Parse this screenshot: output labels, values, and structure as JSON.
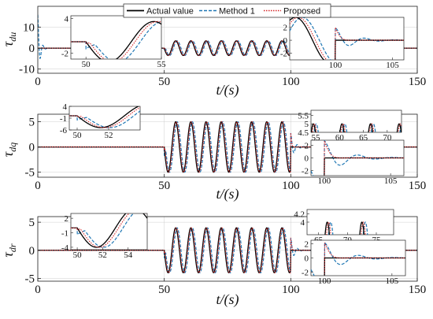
{
  "legend": {
    "entries": [
      {
        "label": "Actual value",
        "color": "#000000",
        "style": "solid"
      },
      {
        "label": "Method 1",
        "color": "#1f77b4",
        "style": "dashed"
      },
      {
        "label": "Proposed",
        "color": "#d62728",
        "style": "dotted"
      }
    ]
  },
  "chart_data": [
    {
      "type": "line",
      "ylabel_main": "τ",
      "ylabel_sub": "du",
      "xlabel": "t/(s)",
      "xlim": [
        0,
        150
      ],
      "ylim": [
        -12,
        20
      ],
      "xticks": [
        0,
        50,
        100,
        150
      ],
      "yticks": [
        -10,
        0,
        10
      ],
      "signal": {
        "segments": [
          {
            "t0": 0,
            "t1": 50,
            "kind": "flat",
            "level": 0
          },
          {
            "t0": 50,
            "t1": 100,
            "kind": "sine",
            "amplitude": 3.5,
            "period": 6
          },
          {
            "t0": 100,
            "t1": 150,
            "kind": "flat",
            "level": 0
          }
        ]
      },
      "method1_transient": {
        "t": 0,
        "amplitude": 16,
        "decay": 1.2,
        "freq": 3
      },
      "insets": [
        {
          "xlim": [
            49,
            55
          ],
          "ylim": [
            -3,
            4.5
          ],
          "xticks": [
            50,
            55
          ],
          "yticks": [
            -2,
            4
          ]
        },
        {
          "xlim": [
            96,
            106
          ],
          "ylim": [
            -3,
            3.5
          ],
          "xticks": [
            100,
            105
          ],
          "yticks": [
            -2,
            0,
            2
          ]
        }
      ]
    },
    {
      "type": "line",
      "ylabel_main": "τ",
      "ylabel_sub": "dq",
      "xlabel": "t/(s)",
      "xlim": [
        0,
        150
      ],
      "ylim": [
        -6,
        6.5
      ],
      "xticks": [
        0,
        50,
        100,
        150
      ],
      "yticks": [
        -5,
        0,
        5
      ],
      "signal": {
        "segments": [
          {
            "t0": 0,
            "t1": 50,
            "kind": "flat",
            "level": 0
          },
          {
            "t0": 50,
            "t1": 100,
            "kind": "sine",
            "amplitude": 5,
            "period": 6
          },
          {
            "t0": 100,
            "t1": 150,
            "kind": "flat",
            "level": 0
          }
        ]
      },
      "insets": [
        {
          "xlim": [
            49.5,
            54
          ],
          "ylim": [
            -6,
            4
          ],
          "xticks": [
            50,
            52
          ],
          "yticks": [
            -6,
            -1,
            4
          ]
        },
        {
          "xlim": [
            54,
            73
          ],
          "ylim": [
            4.5,
            5.8
          ],
          "xticks": [
            55,
            60,
            65,
            70
          ],
          "yticks": [
            4.5,
            5,
            5.5
          ]
        },
        {
          "xlim": [
            99,
            106
          ],
          "ylim": [
            -2.8,
            2.8
          ],
          "xticks": [
            100,
            105
          ],
          "yticks": [
            -2,
            0,
            2
          ]
        }
      ]
    },
    {
      "type": "line",
      "ylabel_main": "τ",
      "ylabel_sub": "dr",
      "xlabel": "t/(s)",
      "xlim": [
        0,
        150
      ],
      "ylim": [
        -5.5,
        6
      ],
      "xticks": [
        0,
        50,
        100,
        150
      ],
      "yticks": [
        -5,
        0,
        5
      ],
      "signal": {
        "segments": [
          {
            "t0": 0,
            "t1": 50,
            "kind": "flat",
            "level": 0
          },
          {
            "t0": 50,
            "t1": 100,
            "kind": "sine",
            "amplitude": 4,
            "period": 6
          },
          {
            "t0": 100,
            "t1": 150,
            "kind": "flat",
            "level": 0
          }
        ]
      },
      "insets": [
        {
          "xlim": [
            49.5,
            55.5
          ],
          "ylim": [
            -4.5,
            3
          ],
          "xticks": [
            50,
            52,
            54
          ],
          "yticks": [
            -4,
            -1,
            2
          ]
        },
        {
          "xlim": [
            63,
            78
          ],
          "ylim": [
            3.7,
            4.3
          ],
          "xticks": [
            65,
            70,
            75
          ],
          "yticks": [
            4,
            4.2
          ]
        },
        {
          "xlim": [
            99,
            106
          ],
          "ylim": [
            -2.5,
            2.5
          ],
          "xticks": [
            100,
            105
          ],
          "yticks": [
            -2,
            0,
            2
          ]
        }
      ]
    }
  ]
}
